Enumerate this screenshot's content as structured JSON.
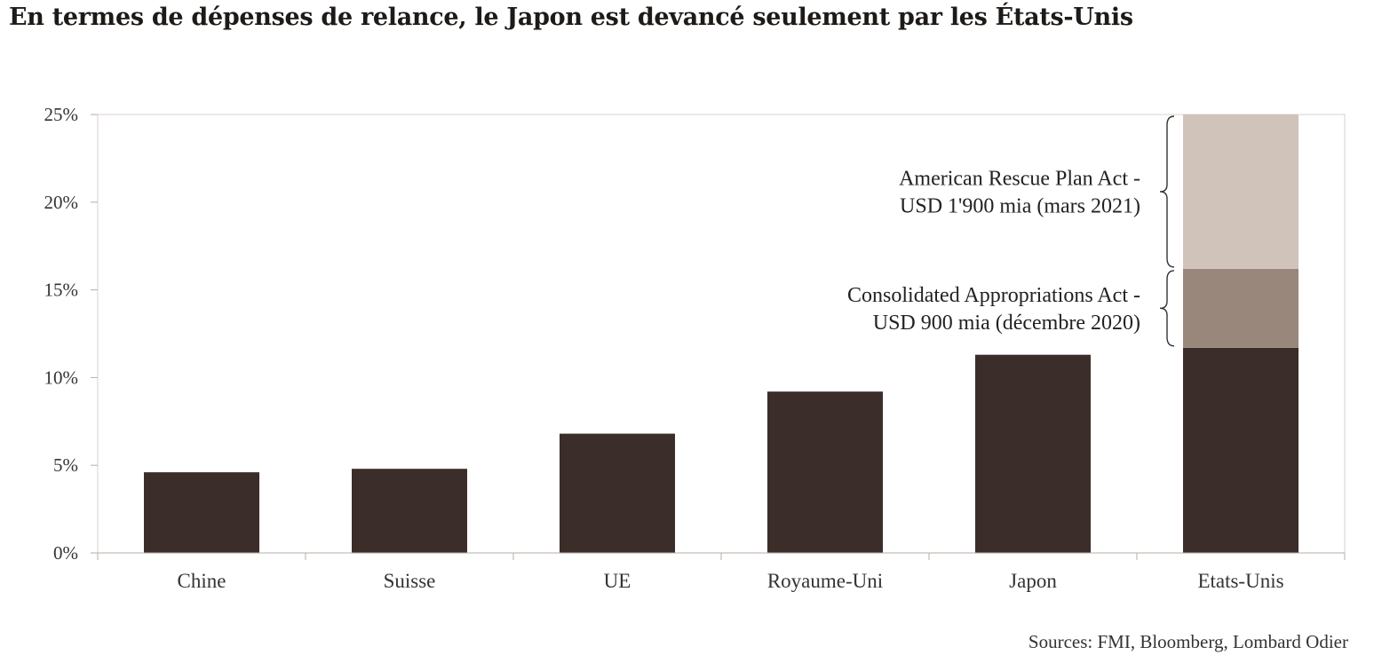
{
  "chart_data": {
    "type": "bar",
    "stacked": true,
    "title": "En termes de dépenses de relance, le Japon est devancé seulement par les États-Unis",
    "categories": [
      "Chine",
      "Suisse",
      "UE",
      "Royaume-Uni",
      "Japon",
      "Etats-Unis"
    ],
    "series": [
      {
        "values": [
          4.6,
          4.8,
          6.8,
          9.2,
          11.3,
          11.7
        ],
        "color": "#3b2d29"
      },
      {
        "values": [
          0,
          0,
          0,
          0,
          0,
          4.5
        ],
        "color": "#9a877b"
      },
      {
        "values": [
          0,
          0,
          0,
          0,
          0,
          8.8
        ],
        "color": "#d0c3ba"
      }
    ],
    "yticks": [
      "0%",
      "5%",
      "10%",
      "15%",
      "20%",
      "25%"
    ],
    "ylim": [
      0,
      25
    ],
    "annotations": [
      {
        "lines": [
          "Consolidated Appropriations Act -",
          "USD 900 mia (décembre 2020)"
        ],
        "from": 11.7,
        "to": 16.2
      },
      {
        "lines": [
          "American Rescue Plan Act -",
          "USD 1'900 mia (mars 2021)"
        ],
        "from": 16.2,
        "to": 25
      }
    ],
    "grid": false,
    "source": "Sources: FMI, Bloomberg, Lombard Odier"
  }
}
